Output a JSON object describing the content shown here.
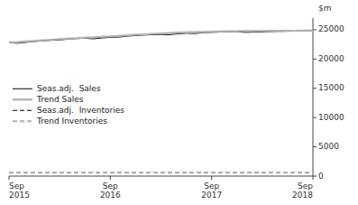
{
  "chart_data": {
    "type": "line",
    "ylabel": "$m",
    "categories": [
      "Sep\n2015",
      null,
      null,
      null,
      null,
      null,
      null,
      null,
      null,
      null,
      null,
      null,
      "Sep\n2016",
      null,
      null,
      null,
      null,
      null,
      null,
      null,
      null,
      null,
      null,
      null,
      "Sep\n2017",
      null,
      null,
      null,
      null,
      null,
      null,
      null,
      null,
      null,
      null,
      null,
      "Sep\n2018"
    ],
    "series": [
      {
        "name": "Seas.adj.  Sales",
        "color": "#000000",
        "line_style": "solid",
        "values": [
          22800,
          22700,
          22850,
          23000,
          23100,
          23200,
          23250,
          23400,
          23500,
          23550,
          23450,
          23600,
          23700,
          23750,
          23900,
          24000,
          24100,
          24150,
          24200,
          24150,
          24300,
          24400,
          24350,
          24500,
          24550,
          24600,
          24650,
          24700,
          24550,
          24600,
          24650,
          24700,
          24720,
          24750,
          24780,
          24800,
          24820
        ]
      },
      {
        "name": "Trend Sales",
        "color": "#b0b0b0",
        "line_style": "solid",
        "values": [
          22850,
          22900,
          23000,
          23100,
          23200,
          23300,
          23400,
          23500,
          23550,
          23650,
          23700,
          23800,
          23850,
          23950,
          24050,
          24150,
          24200,
          24300,
          24380,
          24430,
          24500,
          24560,
          24600,
          24640,
          24680,
          24710,
          24740,
          24760,
          24780,
          24790,
          24800,
          24810,
          24820,
          24830,
          24840,
          24850,
          24860
        ]
      },
      {
        "name": "Seas.adj.  Inventories",
        "color": "#000000",
        "line_style": "dashed",
        "values": [
          620,
          590,
          630,
          610,
          640,
          620,
          600,
          630,
          610,
          620,
          630,
          610,
          620,
          610,
          620,
          630,
          610,
          620,
          610,
          620,
          630,
          610,
          620,
          630,
          610,
          620,
          610,
          620,
          630,
          610,
          620,
          610,
          620,
          630,
          610,
          620,
          610
        ]
      },
      {
        "name": "Trend Inventories",
        "color": "#b0b0b0",
        "line_style": "dashed",
        "values": [
          610,
          612,
          612,
          613,
          613,
          613,
          613,
          613,
          613,
          613,
          613,
          613,
          613,
          613,
          613,
          613,
          613,
          613,
          613,
          613,
          613,
          613,
          613,
          613,
          613,
          613,
          613,
          613,
          613,
          613,
          613,
          613,
          613,
          613,
          613,
          613,
          613
        ]
      }
    ],
    "ylim": [
      0,
      27000
    ],
    "yticks": [
      0,
      5000,
      10000,
      15000,
      20000,
      25000
    ],
    "grid": false,
    "legend": "left"
  }
}
